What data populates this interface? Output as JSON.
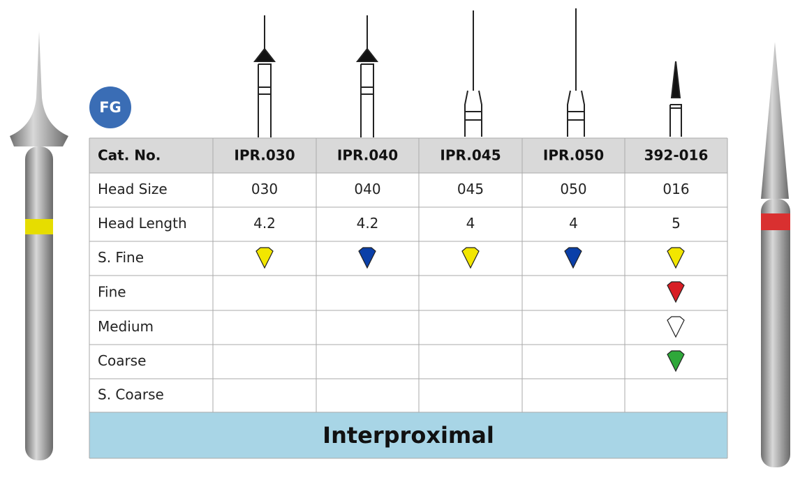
{
  "header": {
    "badge": "FG"
  },
  "table": {
    "columns": [
      "Cat. No.",
      "IPR.030",
      "IPR.040",
      "IPR.045",
      "IPR.050",
      "392-016"
    ],
    "rows": [
      {
        "label": "Head Size",
        "cells": [
          "030",
          "040",
          "045",
          "050",
          "016"
        ]
      },
      {
        "label": "Head Length",
        "cells": [
          "4.2",
          "4.2",
          "4",
          "4",
          "5"
        ]
      },
      {
        "label": "S. Fine"
      },
      {
        "label": "Fine"
      },
      {
        "label": "Medium"
      },
      {
        "label": "Coarse"
      },
      {
        "label": "S. Coarse"
      }
    ]
  },
  "footer": "Interproximal"
}
